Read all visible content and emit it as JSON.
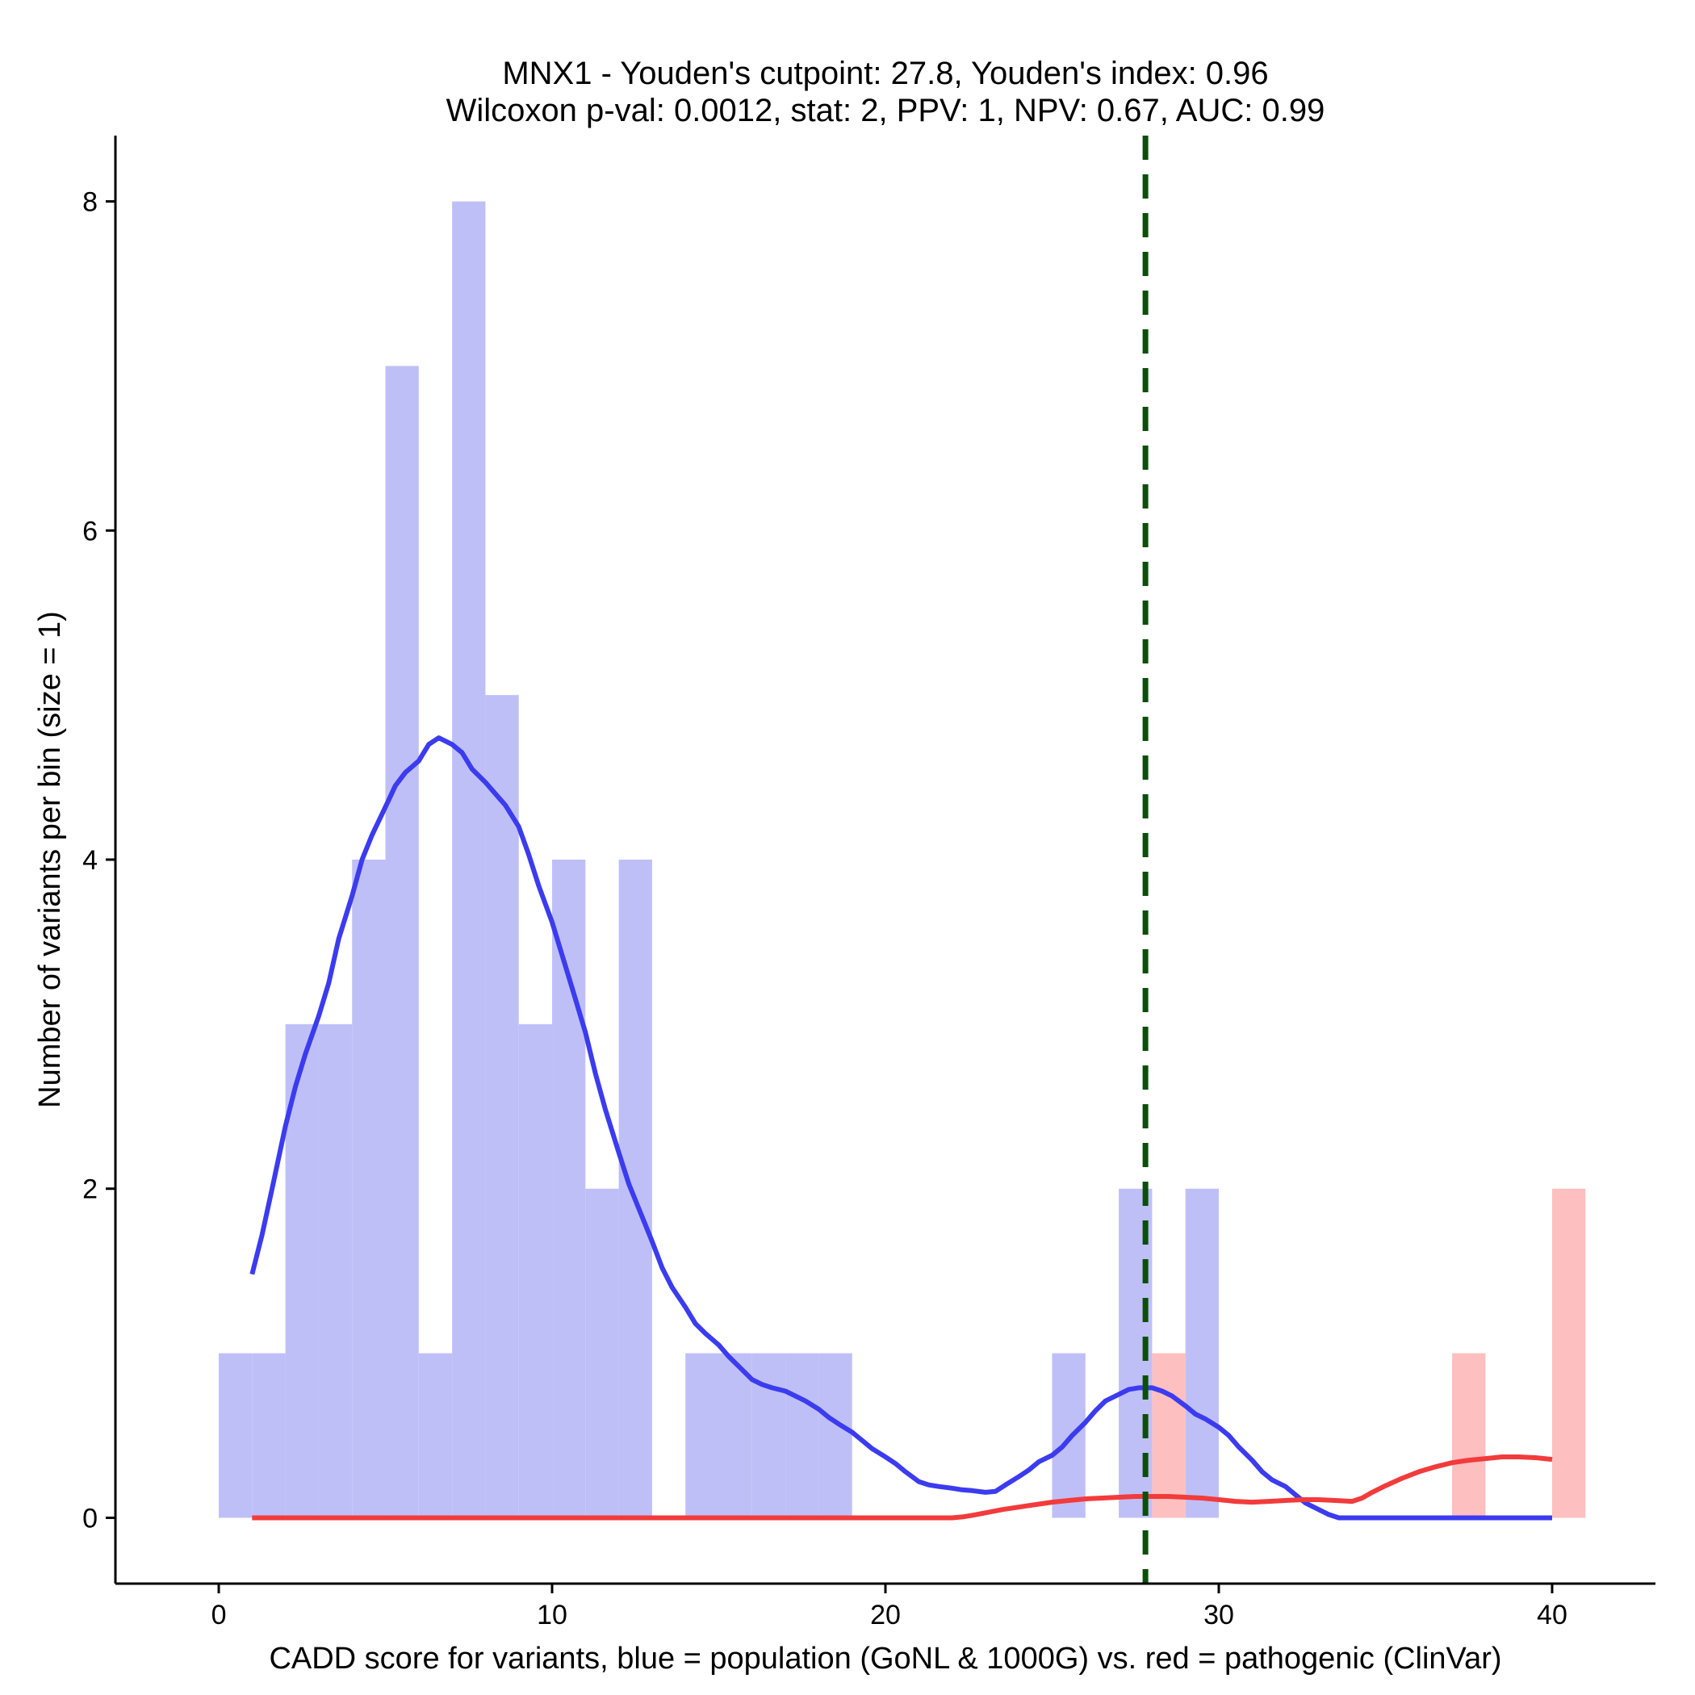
{
  "chart_data": {
    "type": "bar",
    "title": "MNX1 - Youden's cutpoint: 27.8, Youden's index: 0.96",
    "subtitle": "Wilcoxon p-val: 0.0012, stat: 2, PPV: 1, NPV: 0.67, AUC: 0.99",
    "xlabel": "CADD score for variants, blue = population (GoNL & 1000G) vs. red = pathogenic (ClinVar)",
    "ylabel": "Number of variants per bin (size = 1)",
    "xlim": [
      -3.1,
      43.1
    ],
    "ylim": [
      -0.4,
      8.4
    ],
    "xticks": [
      0,
      10,
      20,
      30,
      40
    ],
    "yticks": [
      0,
      2,
      4,
      6,
      8
    ],
    "cutpoint": 27.8,
    "colors": {
      "population_bar": "#bfbff8",
      "pathogenic_bar": "#fdbfbf",
      "population_line": "#3b3bf0",
      "pathogenic_line": "#f23b3b",
      "cutpoint_line": "#0a4f0a"
    },
    "series": [
      {
        "key": "population",
        "bins": [
          [
            0,
            1
          ],
          [
            1,
            1
          ],
          [
            2,
            3
          ],
          [
            3,
            3
          ],
          [
            4,
            4
          ],
          [
            5,
            7
          ],
          [
            6,
            1
          ],
          [
            7,
            8
          ],
          [
            8,
            5
          ],
          [
            9,
            3
          ],
          [
            10,
            4
          ],
          [
            11,
            2
          ],
          [
            12,
            4
          ],
          [
            14,
            1
          ],
          [
            15,
            1
          ],
          [
            16,
            1
          ],
          [
            17,
            1
          ],
          [
            18,
            1
          ],
          [
            25,
            1
          ],
          [
            27,
            2
          ],
          [
            29,
            2
          ]
        ],
        "density": [
          [
            1.0,
            1.48
          ],
          [
            1.3,
            1.72
          ],
          [
            1.6,
            2.0
          ],
          [
            2.0,
            2.38
          ],
          [
            2.3,
            2.62
          ],
          [
            2.6,
            2.82
          ],
          [
            3.0,
            3.05
          ],
          [
            3.3,
            3.25
          ],
          [
            3.6,
            3.52
          ],
          [
            4.0,
            3.78
          ],
          [
            4.3,
            4.0
          ],
          [
            4.6,
            4.15
          ],
          [
            5.0,
            4.32
          ],
          [
            5.3,
            4.45
          ],
          [
            5.6,
            4.53
          ],
          [
            6.0,
            4.6
          ],
          [
            6.3,
            4.7
          ],
          [
            6.6,
            4.74
          ],
          [
            7.0,
            4.7
          ],
          [
            7.3,
            4.65
          ],
          [
            7.6,
            4.55
          ],
          [
            8.0,
            4.47
          ],
          [
            8.3,
            4.4
          ],
          [
            8.6,
            4.33
          ],
          [
            9.0,
            4.2
          ],
          [
            9.3,
            4.03
          ],
          [
            9.6,
            3.84
          ],
          [
            10.0,
            3.62
          ],
          [
            10.3,
            3.42
          ],
          [
            10.6,
            3.22
          ],
          [
            11.0,
            2.95
          ],
          [
            11.3,
            2.7
          ],
          [
            11.6,
            2.48
          ],
          [
            12.0,
            2.22
          ],
          [
            12.3,
            2.03
          ],
          [
            12.6,
            1.88
          ],
          [
            13.0,
            1.68
          ],
          [
            13.3,
            1.52
          ],
          [
            13.6,
            1.4
          ],
          [
            14.0,
            1.28
          ],
          [
            14.3,
            1.18
          ],
          [
            14.6,
            1.12
          ],
          [
            15.0,
            1.05
          ],
          [
            15.3,
            0.98
          ],
          [
            15.6,
            0.92
          ],
          [
            16.0,
            0.84
          ],
          [
            16.3,
            0.81
          ],
          [
            16.6,
            0.79
          ],
          [
            17.0,
            0.77
          ],
          [
            17.3,
            0.74
          ],
          [
            17.6,
            0.71
          ],
          [
            18.0,
            0.66
          ],
          [
            18.3,
            0.61
          ],
          [
            18.6,
            0.57
          ],
          [
            19.0,
            0.52
          ],
          [
            19.3,
            0.47
          ],
          [
            19.6,
            0.42
          ],
          [
            20.0,
            0.37
          ],
          [
            20.3,
            0.33
          ],
          [
            20.6,
            0.28
          ],
          [
            21.0,
            0.22
          ],
          [
            21.3,
            0.2
          ],
          [
            21.6,
            0.19
          ],
          [
            22.0,
            0.18
          ],
          [
            22.3,
            0.17
          ],
          [
            22.6,
            0.165
          ],
          [
            23.0,
            0.155
          ],
          [
            23.3,
            0.16
          ],
          [
            23.6,
            0.2
          ],
          [
            24.0,
            0.25
          ],
          [
            24.3,
            0.29
          ],
          [
            24.6,
            0.34
          ],
          [
            25.0,
            0.38
          ],
          [
            25.3,
            0.43
          ],
          [
            25.6,
            0.5
          ],
          [
            26.0,
            0.58
          ],
          [
            26.3,
            0.65
          ],
          [
            26.6,
            0.71
          ],
          [
            27.0,
            0.75
          ],
          [
            27.3,
            0.78
          ],
          [
            27.6,
            0.79
          ],
          [
            28.0,
            0.79
          ],
          [
            28.3,
            0.77
          ],
          [
            28.6,
            0.74
          ],
          [
            29.0,
            0.68
          ],
          [
            29.3,
            0.63
          ],
          [
            29.6,
            0.6
          ],
          [
            30.0,
            0.55
          ],
          [
            30.3,
            0.5
          ],
          [
            30.6,
            0.43
          ],
          [
            31.0,
            0.35
          ],
          [
            31.3,
            0.28
          ],
          [
            31.6,
            0.23
          ],
          [
            32.0,
            0.19
          ],
          [
            32.3,
            0.14
          ],
          [
            32.6,
            0.09
          ],
          [
            33.0,
            0.05
          ],
          [
            33.3,
            0.02
          ],
          [
            33.6,
            0.0
          ],
          [
            34.0,
            0.0
          ],
          [
            35.0,
            0.0
          ],
          [
            36.0,
            0.0
          ],
          [
            37.0,
            0.0
          ],
          [
            38.0,
            0.0
          ],
          [
            39.0,
            0.0
          ],
          [
            40.0,
            0.0
          ]
        ]
      },
      {
        "key": "pathogenic",
        "bins": [
          [
            28,
            1
          ],
          [
            37,
            1
          ],
          [
            40,
            2
          ]
        ],
        "density": [
          [
            1.0,
            0.0
          ],
          [
            5.0,
            0.0
          ],
          [
            10.0,
            0.0
          ],
          [
            15.0,
            0.0
          ],
          [
            20.0,
            0.0
          ],
          [
            22.0,
            0.0
          ],
          [
            22.3,
            0.005
          ],
          [
            22.6,
            0.015
          ],
          [
            23.0,
            0.03
          ],
          [
            23.5,
            0.05
          ],
          [
            24.0,
            0.065
          ],
          [
            24.5,
            0.08
          ],
          [
            25.0,
            0.095
          ],
          [
            25.5,
            0.105
          ],
          [
            26.0,
            0.115
          ],
          [
            26.5,
            0.12
          ],
          [
            27.0,
            0.125
          ],
          [
            27.5,
            0.13
          ],
          [
            28.0,
            0.13
          ],
          [
            28.5,
            0.13
          ],
          [
            29.0,
            0.125
          ],
          [
            29.5,
            0.12
          ],
          [
            30.0,
            0.11
          ],
          [
            30.5,
            0.1
          ],
          [
            31.0,
            0.095
          ],
          [
            31.5,
            0.1
          ],
          [
            32.0,
            0.105
          ],
          [
            32.5,
            0.11
          ],
          [
            33.0,
            0.11
          ],
          [
            33.5,
            0.105
          ],
          [
            34.0,
            0.1
          ],
          [
            34.3,
            0.12
          ],
          [
            34.6,
            0.155
          ],
          [
            35.0,
            0.195
          ],
          [
            35.5,
            0.24
          ],
          [
            36.0,
            0.28
          ],
          [
            36.5,
            0.31
          ],
          [
            37.0,
            0.335
          ],
          [
            37.5,
            0.35
          ],
          [
            38.0,
            0.36
          ],
          [
            38.5,
            0.37
          ],
          [
            39.0,
            0.37
          ],
          [
            39.5,
            0.365
          ],
          [
            40.0,
            0.355
          ]
        ]
      }
    ]
  }
}
